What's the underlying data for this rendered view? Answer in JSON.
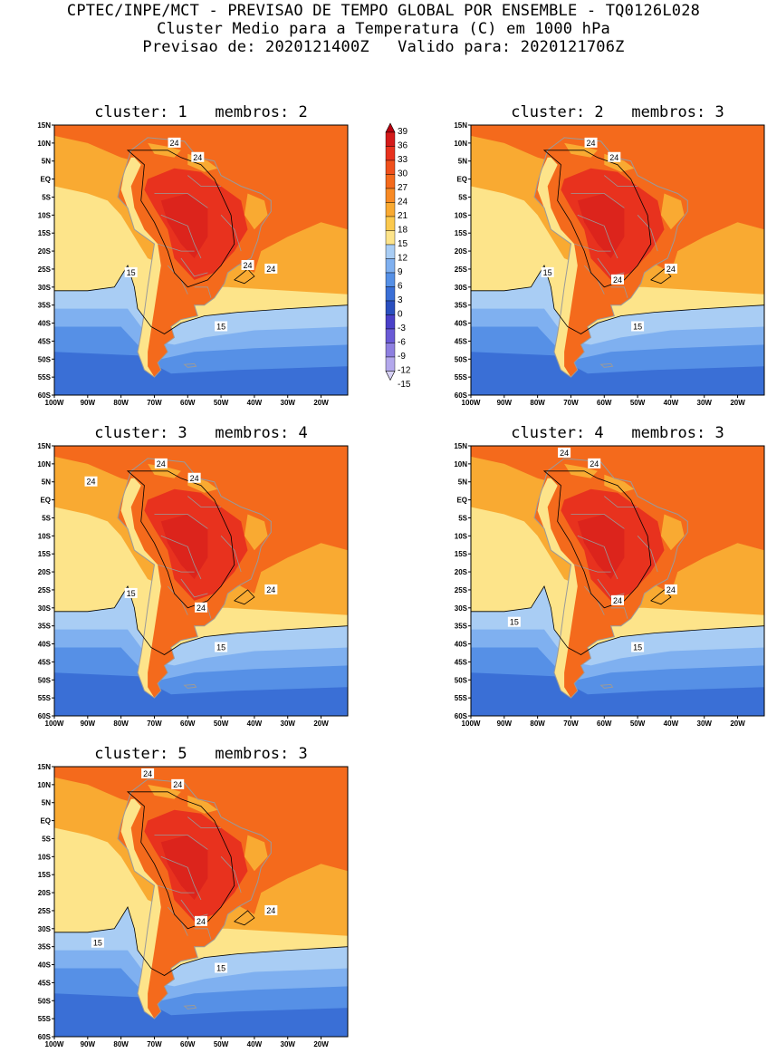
{
  "header": {
    "line1": "CPTEC/INPE/MCT - PREVISAO DE TEMPO GLOBAL POR ENSEMBLE - TQ0126L028",
    "line2": "Cluster Medio para a Temperatura (C) em 1000 hPa",
    "line3": "Previsao de: 2020121400Z   Valido para: 2020121706Z"
  },
  "axes": {
    "lat_labels": [
      "15N",
      "10N",
      "5N",
      "EQ",
      "5S",
      "10S",
      "15S",
      "20S",
      "25S",
      "30S",
      "35S",
      "40S",
      "45S",
      "50S",
      "55S",
      "60S"
    ],
    "lon_labels": [
      "100W",
      "90W",
      "80W",
      "70W",
      "60W",
      "50W",
      "40W",
      "30W",
      "20W"
    ]
  },
  "panels": [
    {
      "title": "cluster: 1   membros: 2",
      "contour_labels": [
        "24",
        "24",
        "24",
        "24",
        "15",
        "15"
      ]
    },
    {
      "title": "cluster: 2   membros: 3",
      "contour_labels": [
        "24",
        "24",
        "24",
        "24",
        "15",
        "15"
      ]
    },
    {
      "title": "cluster: 3   membros: 4",
      "contour_labels": [
        "24",
        "24",
        "24",
        "24",
        "24",
        "15",
        "15"
      ]
    },
    {
      "title": "cluster: 4   membros: 3",
      "contour_labels": [
        "24",
        "24",
        "24",
        "24",
        "15",
        "15"
      ]
    },
    {
      "title": "cluster: 5   membros: 3",
      "contour_labels": [
        "24",
        "24",
        "24",
        "24",
        "15",
        "15"
      ]
    }
  ],
  "colorbar": {
    "labels": [
      "39",
      "36",
      "33",
      "30",
      "27",
      "24",
      "21",
      "18",
      "15",
      "12",
      "9",
      "6",
      "3",
      "0",
      "-3",
      "-6",
      "-9",
      "-12",
      "-15"
    ],
    "colors": [
      "#b8000f",
      "#d41a1a",
      "#e8321e",
      "#f0501c",
      "#f46a1c",
      "#f88a24",
      "#f9aa32",
      "#fbc94e",
      "#fde48a",
      "#a9cdf4",
      "#7fb0f0",
      "#5690e6",
      "#3a6fd6",
      "#2a4fbf",
      "#4a40c8",
      "#6a5ad6",
      "#8e7fe0",
      "#b3a8ec",
      "#d8d2f6"
    ]
  },
  "legend_colors": {
    "ocean_warm": "#f46a1c",
    "ocean_mid": "#f9aa32",
    "ocean_cool": "#fde48a",
    "cold_1": "#a9cdf4",
    "cold_2": "#7fb0f0",
    "cold_3": "#5690e6",
    "cold_4": "#3a6fd6",
    "land_hot": "#e8321e",
    "land_hotter": "#d41a1a",
    "coast": "#9a9a9a"
  }
}
